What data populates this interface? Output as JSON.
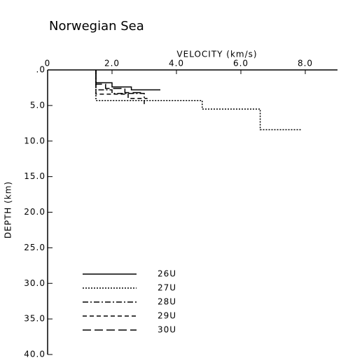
{
  "chart_data": {
    "type": "line",
    "title": "Norwegian Sea",
    "x_label": "VELOCITY (km/s)",
    "y_label": "DEPTH (km)",
    "xlim": [
      0,
      9
    ],
    "xticks": [
      0,
      {
        "value": 2,
        "label": "2.0"
      },
      {
        "value": 4,
        "label": "4.0"
      },
      {
        "value": 6,
        "label": "6.0"
      },
      {
        "value": 8,
        "label": "8.0"
      }
    ],
    "ylim": [
      0,
      40
    ],
    "y_inverted": true,
    "yticks": [
      {
        "value": 0,
        "label": ".0"
      },
      {
        "value": 5,
        "label": "5.0"
      },
      {
        "value": 10,
        "label": "10.0"
      },
      {
        "value": 15,
        "label": "15.0"
      },
      {
        "value": 20,
        "label": "20.0"
      },
      {
        "value": 25,
        "label": "25.0"
      },
      {
        "value": 30,
        "label": "30.0"
      },
      {
        "value": 35,
        "label": "35.0"
      },
      {
        "value": 40,
        "label": "40.0"
      }
    ],
    "series": [
      {
        "name": "26U",
        "color": "#000000",
        "dash": "solid",
        "x": [
          1.5,
          1.5,
          2.0,
          2.0,
          2.6,
          2.6,
          3.5
        ],
        "values": [
          0,
          1.8,
          1.8,
          2.4,
          2.4,
          2.8,
          2.8
        ]
      },
      {
        "name": "27U",
        "color": "#000000",
        "dash": "dotted",
        "x": [
          1.5,
          1.5,
          4.8,
          4.8,
          6.6,
          6.6,
          7.9
        ],
        "values": [
          0,
          4.3,
          4.3,
          5.5,
          5.5,
          8.4,
          8.4
        ]
      },
      {
        "name": "28U",
        "color": "#000000",
        "dash": "dashdot",
        "x": [
          1.5,
          1.5,
          2.0,
          2.0,
          3.0,
          3.0
        ],
        "values": [
          0,
          2.8,
          2.8,
          3.3,
          3.3,
          4.8
        ]
      },
      {
        "name": "29U",
        "color": "#000000",
        "dash": "dashed",
        "x": [
          1.5,
          1.5,
          2.5,
          2.5,
          3.1
        ],
        "values": [
          0,
          3.4,
          3.4,
          4.0,
          4.0
        ]
      },
      {
        "name": "30U",
        "color": "#000000",
        "dash": "longdash",
        "x": [
          1.5,
          1.5,
          1.8,
          1.8,
          2.4,
          2.4,
          3.0
        ],
        "values": [
          0,
          2.0,
          2.0,
          2.6,
          2.6,
          3.2,
          3.2
        ]
      }
    ]
  }
}
